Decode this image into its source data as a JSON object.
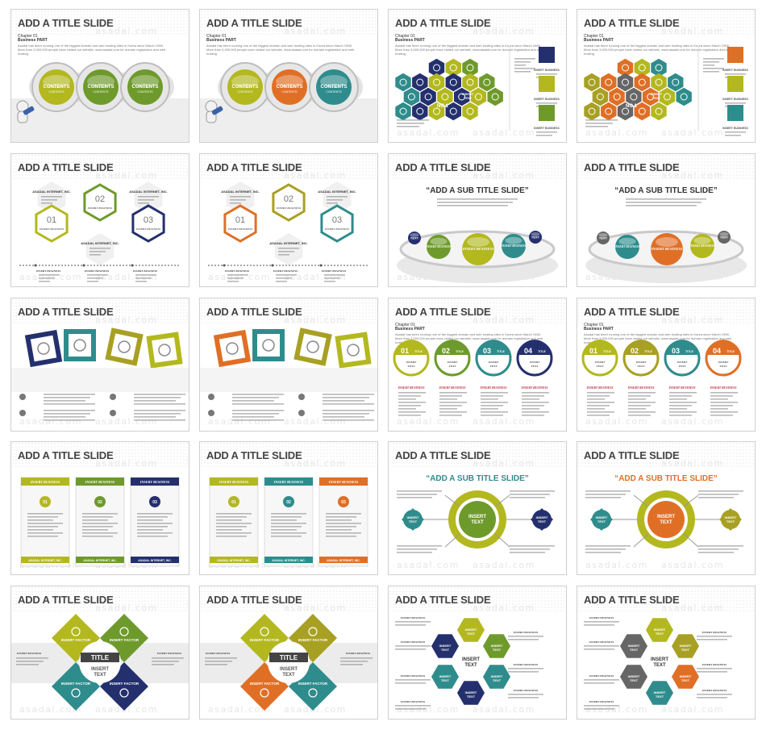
{
  "slide_title": "ADD A TITLE SLIDE",
  "watermark": "asadal.com",
  "sub_title": "“ADD A SUB TITLE SLIDE”",
  "chapter": "Chapter 01",
  "business_part": "Business PART",
  "paragraph": "Asadal has been running one of the biggest domain and web hosting sites in Korea since March 1998. More than 3,000,000 people have visited our website, www.asadal.com for domain registration and web hosting.",
  "contents": "CONTENTS",
  "insert_text": "INSERT TEXT",
  "insert_business": "INSERT BUSINESS",
  "insert_factor": "INSERT FACTOR",
  "insert": "INSERT",
  "text": "TEXT",
  "title_word": "TITLE",
  "no1": "NO.1",
  "asadal_inc": "ASADAL INTERNET, INC.",
  "numbers": [
    "01",
    "02",
    "03",
    "04"
  ],
  "colors": {
    "olive": "#b3b81f",
    "green": "#6e9a2c",
    "navy": "#24306e",
    "teal": "#2f8c8c",
    "orange": "#e06f26",
    "gold": "#a8a023",
    "gray": "#666666"
  }
}
